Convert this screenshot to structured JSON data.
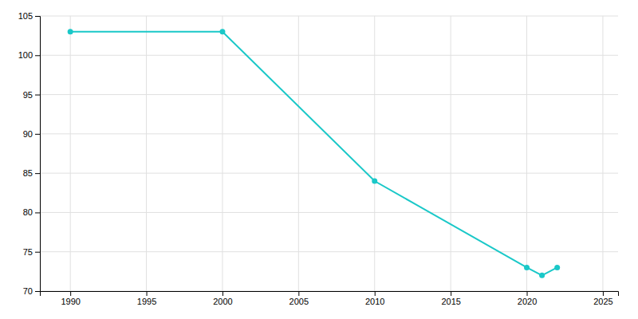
{
  "chart_data": {
    "type": "line",
    "x": [
      1990,
      2000,
      2010,
      2020,
      2021,
      2022
    ],
    "values": [
      103,
      103,
      84,
      73,
      72,
      73
    ],
    "color": "#1ac8c8",
    "marker": "circle",
    "xlim": [
      1988,
      2026
    ],
    "ylim": [
      70,
      105
    ],
    "xticks": [
      1990,
      1995,
      2000,
      2005,
      2010,
      2015,
      2020,
      2025
    ],
    "yticks": [
      70,
      75,
      80,
      85,
      90,
      95,
      100,
      105
    ],
    "grid": true
  }
}
